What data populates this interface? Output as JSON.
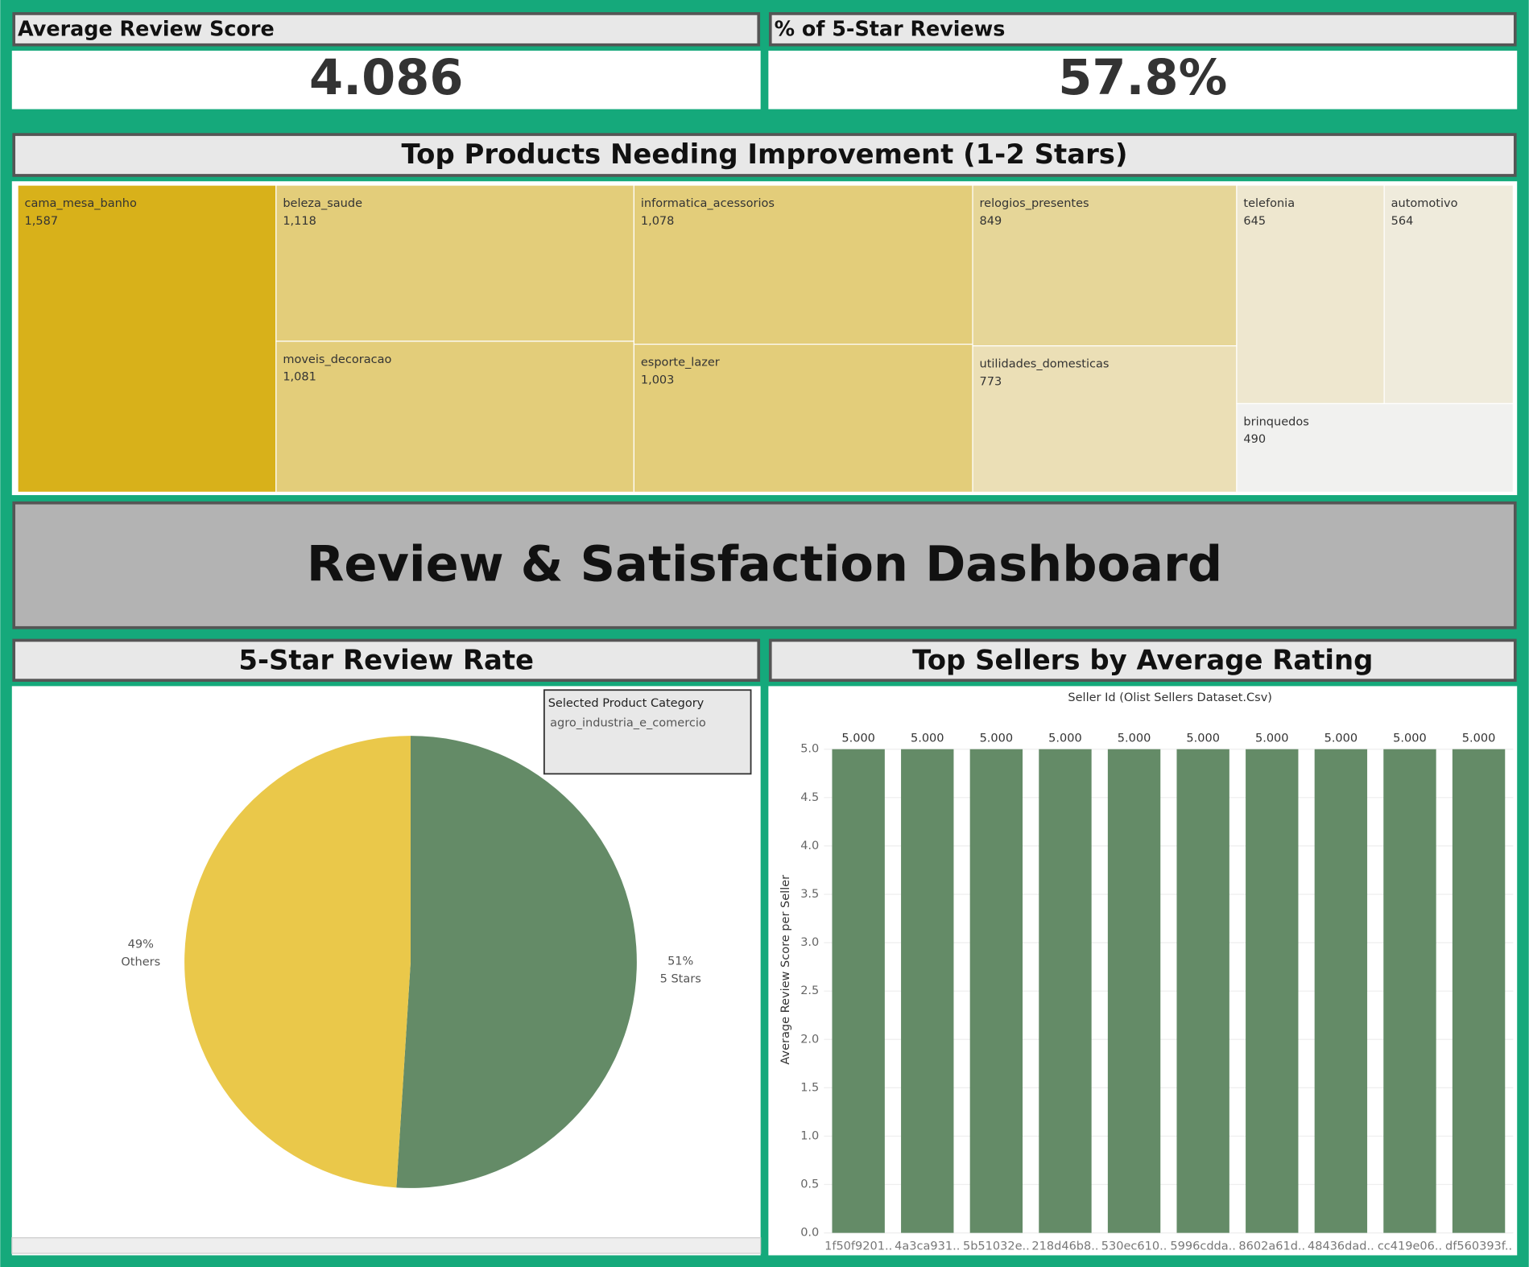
{
  "dashboard_title": "Review & Satisfaction Dashboard",
  "kpis": [
    {
      "title": "Average Review Score",
      "value": "4.086"
    },
    {
      "title": "% of 5-Star Reviews",
      "value": "57.8%"
    }
  ],
  "chart_data": [
    {
      "type": "treemap",
      "title": "Top Products Needing Improvement (1-2 Stars)",
      "categories": [
        "cama_mesa_banho",
        "beleza_saude",
        "moveis_decoracao",
        "informatica_acessorios",
        "esporte_lazer",
        "relogios_presentes",
        "utilidades_domesticas",
        "telefonia",
        "automotivo",
        "brinquedos"
      ],
      "values": [
        1587,
        1118,
        1081,
        1078,
        1003,
        849,
        773,
        645,
        564,
        490
      ],
      "value_labels": [
        "1,587",
        "1,118",
        "1,081",
        "1,078",
        "1,003",
        "849",
        "773",
        "645",
        "564",
        "490"
      ],
      "colors": [
        "#d8b11a",
        "#e3cd7a",
        "#e3cd7a",
        "#e3cd7a",
        "#e3cd7a",
        "#e6d698",
        "#ebdfb6",
        "#eee7cf",
        "#efebdc",
        "#f1f1ef"
      ]
    },
    {
      "type": "pie",
      "title": "5-Star Review Rate",
      "categories": [
        "5 Stars",
        "Others"
      ],
      "values": [
        51,
        49
      ],
      "value_labels": [
        "51%",
        "49%"
      ],
      "colors": [
        "#648b67",
        "#eac84a"
      ],
      "filter": {
        "title": "Selected Product Category",
        "value": "agro_industria_e_comercio"
      }
    },
    {
      "type": "bar",
      "title": "Top Sellers by Average Rating",
      "x_label": "Seller Id (Olist Sellers Dataset.Csv)",
      "y_label": "Average Review Score per Seller",
      "categories": [
        "1f50f9201..",
        "4a3ca931..",
        "5b51032e..",
        "218d46b8..",
        "530ec610..",
        "5996cdda..",
        "8602a61d..",
        "48436dad..",
        "cc419e06..",
        "df560393f.."
      ],
      "values": [
        5,
        5,
        5,
        5,
        5,
        5,
        5,
        5,
        5,
        5
      ],
      "value_labels": [
        "5.000",
        "5.000",
        "5.000",
        "5.000",
        "5.000",
        "5.000",
        "5.000",
        "5.000",
        "5.000",
        "5.000"
      ],
      "color": "#648b67",
      "ylim": [
        0,
        5.4
      ],
      "grid": true,
      "yticks": [
        {
          "value": 0,
          "label": "0.0"
        },
        {
          "value": 0.5,
          "label": "0.5"
        },
        {
          "value": 1,
          "label": "1.0"
        },
        {
          "value": 1.5,
          "label": "1.5"
        },
        {
          "value": 2,
          "label": "2.0"
        },
        {
          "value": 2.5,
          "label": "2.5"
        },
        {
          "value": 3,
          "label": "3.0"
        },
        {
          "value": 3.5,
          "label": "3.5"
        },
        {
          "value": 4,
          "label": "4.0"
        },
        {
          "value": 4.5,
          "label": "4.5"
        },
        {
          "value": 5,
          "label": "5.0"
        }
      ]
    }
  ]
}
